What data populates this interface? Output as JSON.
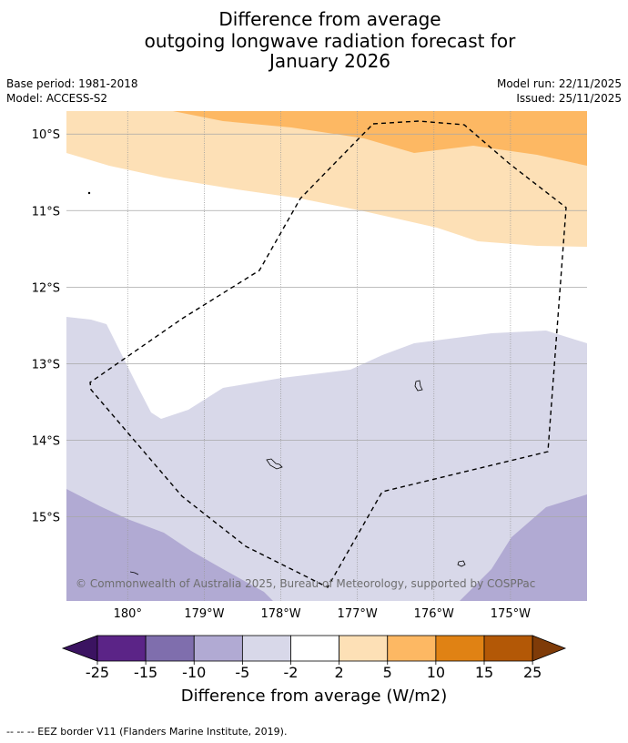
{
  "header": {
    "title_line1": "Difference from average",
    "title_line2": "outgoing longwave radiation forecast for",
    "title_line3": "January 2026",
    "base_period": "Base period: 1981-2018",
    "model": "Model: ACCESS-S2",
    "model_run": "Model run: 22/11/2025",
    "issued": "Issued: 25/11/2025"
  },
  "map": {
    "lat_labels": [
      "10°S",
      "11°S",
      "12°S",
      "13°S",
      "14°S",
      "15°S"
    ],
    "lon_labels": [
      "180°",
      "179°W",
      "178°W",
      "177°W",
      "176°W",
      "175°W"
    ],
    "copyright": "© Commonwealth of Australia 2025, Bureau of Meteorology, supported by COSPPac",
    "bounds": {
      "lon_west": 180.8,
      "lon_east": 174.0,
      "lat_north": 9.7,
      "lat_south": 16.1
    }
  },
  "colorbar": {
    "ticks": [
      "-25",
      "-15",
      "-10",
      "-5",
      "-2",
      "2",
      "5",
      "10",
      "15",
      "25"
    ],
    "colors": {
      "below": "#3b1361",
      "c1": "#5b2487",
      "c2": "#7f6ead",
      "c3": "#b1aad3",
      "c4": "#d8d8e9",
      "c5": "#ffffff",
      "c6": "#fde0b6",
      "c7": "#fdb863",
      "c8": "#e08214",
      "c9": "#b35806",
      "above": "#7f3b08"
    },
    "label": "Difference from average (W/m2)"
  },
  "footnote": "-- -- -- EEZ border V11 (Flanders Marine Institute, 2019)."
}
